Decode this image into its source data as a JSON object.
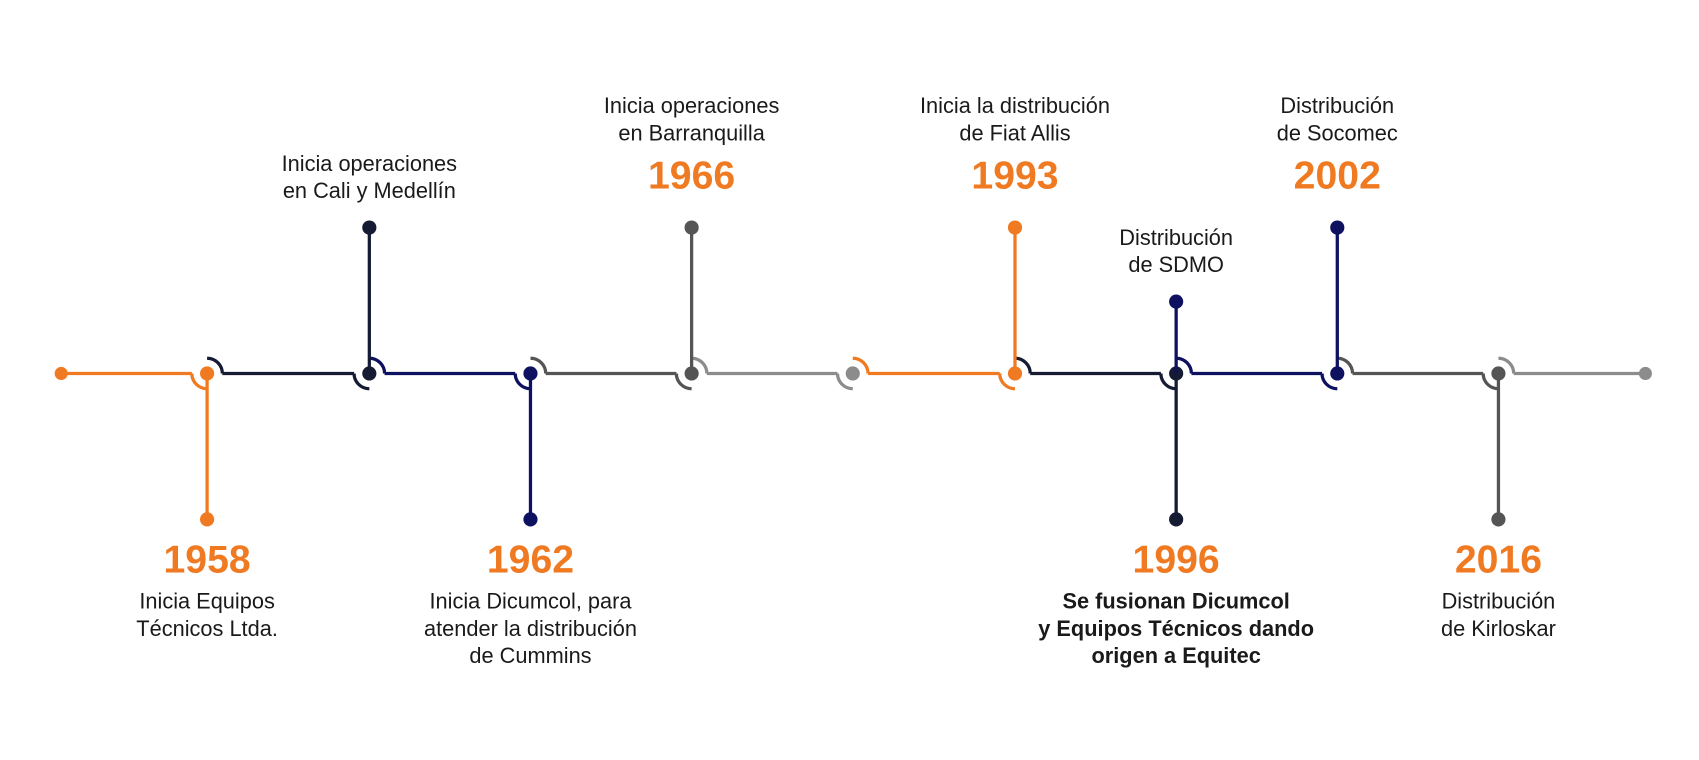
{
  "events": [
    {
      "year": "1958",
      "lines": [
        "Inicia Equipos",
        "Técnicos Ltda."
      ]
    },
    {
      "lines": [
        "Inicia operaciones",
        "en Cali y Medellín"
      ]
    },
    {
      "year": "1962",
      "lines": [
        "Inicia Dicumcol, para",
        "atender la distribución",
        "de Cummins"
      ]
    },
    {
      "year": "1966",
      "lines": [
        "Inicia operaciones",
        "en Barranquilla"
      ]
    },
    {
      "year": "1993",
      "lines": [
        "Inicia la distribución",
        "de Fiat Allis"
      ]
    },
    {
      "lines": [
        "Distribución",
        "de SDMO"
      ]
    },
    {
      "year": "1996",
      "lines": [
        "Se fusionan Dicumcol",
        "y Equipos Técnicos dando",
        "origen a Equitec"
      ]
    },
    {
      "year": "2002",
      "lines": [
        "Distribución",
        "de Socomec"
      ]
    },
    {
      "year": "2016",
      "lines": [
        "Distribución",
        "de Kirloskar"
      ]
    }
  ]
}
